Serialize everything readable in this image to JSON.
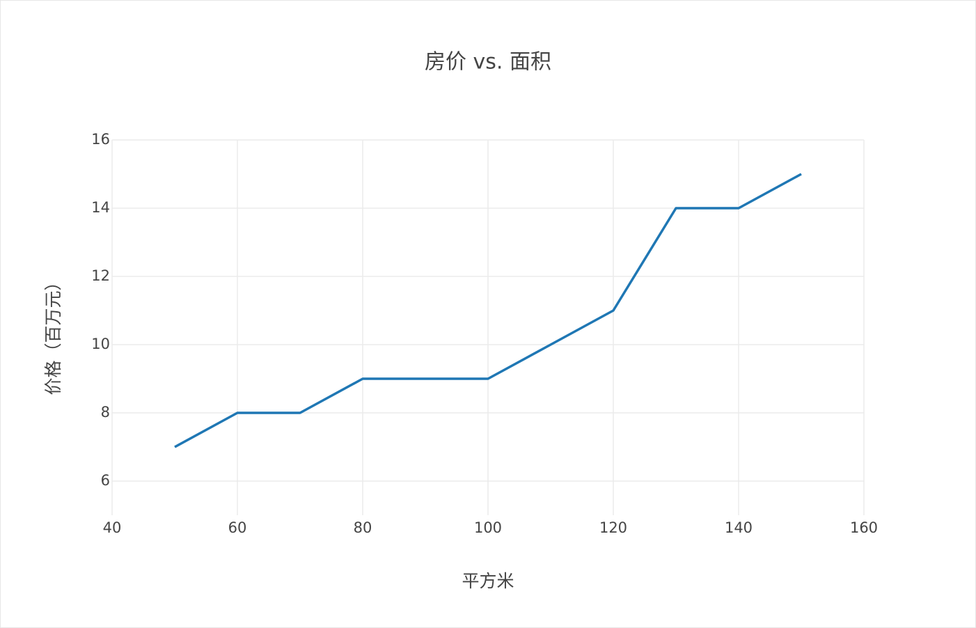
{
  "chart_data": {
    "type": "line",
    "title": "房价 vs. 面积",
    "x_label": "平方米",
    "y_label": "价格（百万元）",
    "x": [
      50,
      60,
      70,
      80,
      90,
      100,
      110,
      120,
      130,
      140,
      150
    ],
    "series": [
      {
        "name": "房价",
        "color": "#1f77b4",
        "values": [
          7,
          8,
          8,
          9,
          9,
          9,
          10,
          11,
          14,
          14,
          15
        ]
      }
    ],
    "xlim": [
      40,
      160
    ],
    "xticks": [
      40,
      60,
      80,
      100,
      120,
      140,
      160
    ],
    "ylim": [
      5,
      16
    ],
    "yticks": [
      6,
      8,
      10,
      12,
      14,
      16
    ],
    "grid": true
  }
}
